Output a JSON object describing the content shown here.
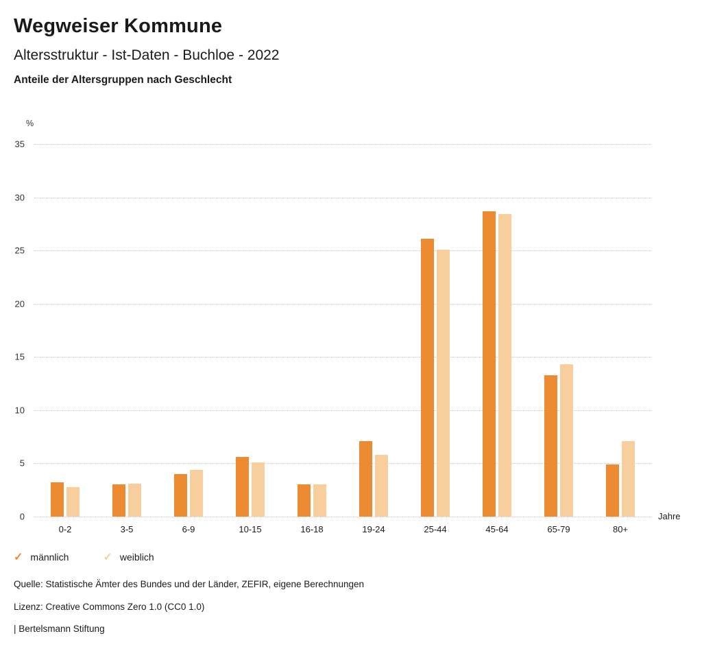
{
  "header": {
    "title": "Wegweiser Kommune",
    "subtitle": "Altersstruktur - Ist-Daten - Buchloe - 2022",
    "section_title": "Anteile der Altersgruppen nach Geschlecht"
  },
  "chart_data": {
    "type": "bar",
    "title": "Anteile der Altersgruppen nach Geschlecht",
    "categories": [
      "0-2",
      "3-5",
      "6-9",
      "10-15",
      "16-18",
      "19-24",
      "25-44",
      "45-64",
      "65-79",
      "80+"
    ],
    "series": [
      {
        "name": "männlich",
        "color": "#ED8B32",
        "values": [
          3.2,
          3.0,
          4.0,
          5.6,
          3.0,
          7.1,
          26.1,
          28.7,
          13.3,
          4.9
        ]
      },
      {
        "name": "weiblich",
        "color": "#F8CE9D",
        "values": [
          2.8,
          3.1,
          4.4,
          5.1,
          3.0,
          5.8,
          25.1,
          28.4,
          14.3,
          7.1
        ]
      }
    ],
    "xlabel": "Jahre",
    "ylabel": "%",
    "ylim": [
      0,
      35
    ],
    "ytick_step": 5,
    "grid": true,
    "legend_position": "bottom-left"
  },
  "legend": {
    "items": [
      {
        "label": "männlich",
        "color": "#ED8B32",
        "check": "✓"
      },
      {
        "label": "weiblich",
        "color": "#F8CE9D",
        "check": "✓"
      }
    ]
  },
  "footer": {
    "source": "Quelle: Statistische Ämter des Bundes und der Länder, ZEFIR, eigene Berechnungen",
    "license": "Lizenz: Creative Commons Zero 1.0 (CC0 1.0)",
    "attribution": "| Bertelsmann Stiftung"
  }
}
